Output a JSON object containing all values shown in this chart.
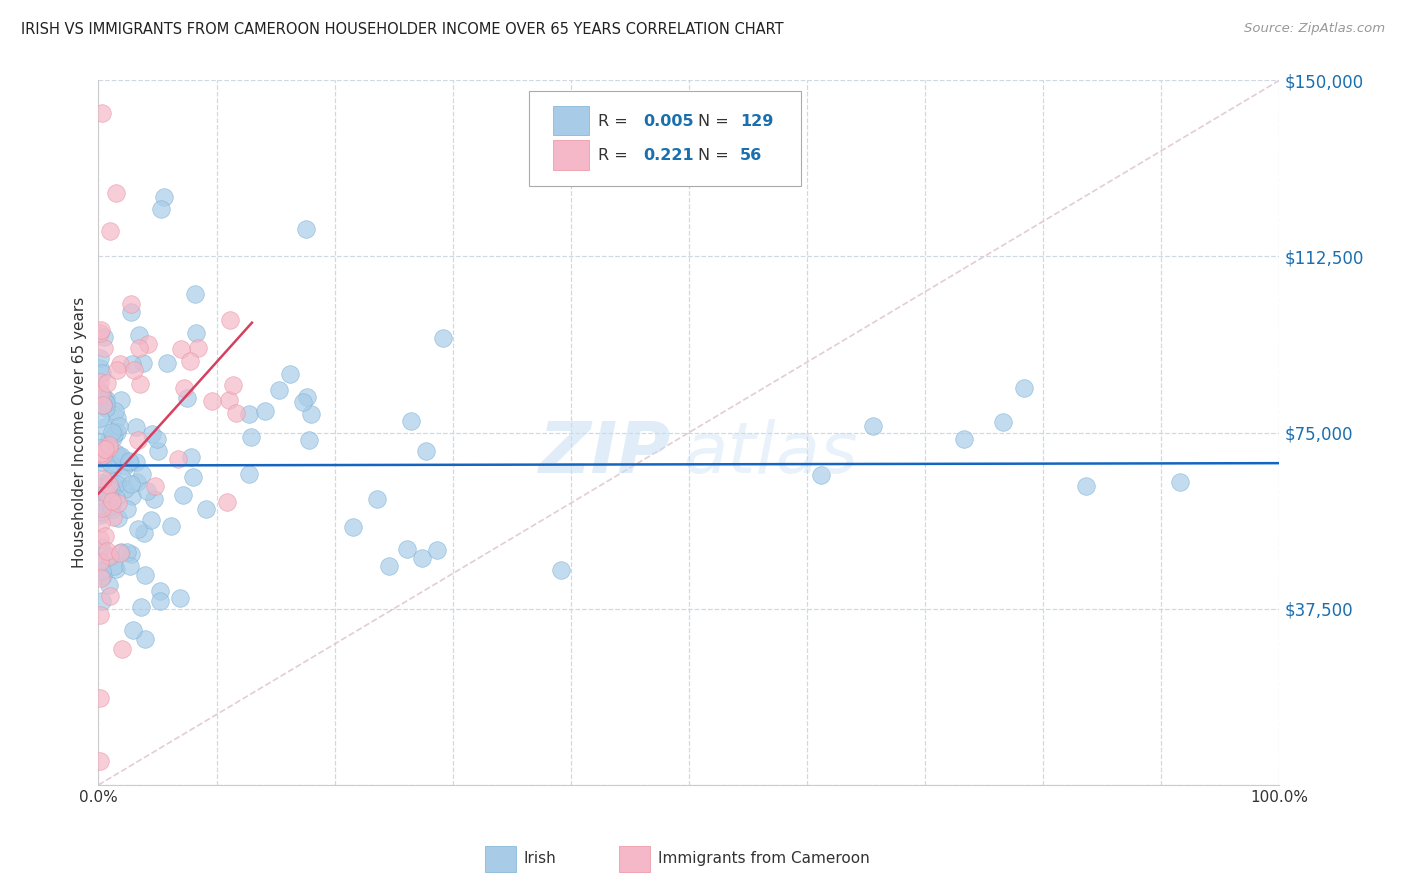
{
  "title": "IRISH VS IMMIGRANTS FROM CAMEROON HOUSEHOLDER INCOME OVER 65 YEARS CORRELATION CHART",
  "source": "Source: ZipAtlas.com",
  "ylabel": "Householder Income Over 65 years",
  "blue_color": "#a8cce8",
  "blue_edge_color": "#7ab0d4",
  "blue_line_color": "#1565c0",
  "pink_color": "#f4b8c8",
  "pink_edge_color": "#e8909e",
  "pink_line_color": "#d64060",
  "diag_color": "#e0c8d0",
  "grid_color": "#d0d8e0",
  "axis_label_color": "#1a6faf",
  "watermark_color": "#c8dff5",
  "ytick_vals": [
    0,
    37500,
    75000,
    112500,
    150000
  ],
  "ytick_labels": [
    "",
    "$37,500",
    "$75,000",
    "$112,500",
    "$150,000"
  ],
  "xtick_vals": [
    0.0,
    0.1,
    0.2,
    0.3,
    0.4,
    0.5,
    0.6,
    0.7,
    0.8,
    0.9,
    1.0
  ],
  "xtick_labels": [
    "0.0%",
    "",
    "",
    "",
    "",
    "",
    "",
    "",
    "",
    "",
    "100.0%"
  ],
  "xlim": [
    0.0,
    1.0
  ],
  "ylim": [
    0,
    150000
  ],
  "irish_R": "0.005",
  "irish_N": "129",
  "cam_R": "0.221",
  "cam_N": "56",
  "irish_intercept": 68000,
  "irish_slope": 500,
  "cam_intercept": 62000,
  "cam_slope": 280000,
  "cam_line_xmax": 0.13,
  "irish_seed": 17,
  "cam_seed": 42
}
